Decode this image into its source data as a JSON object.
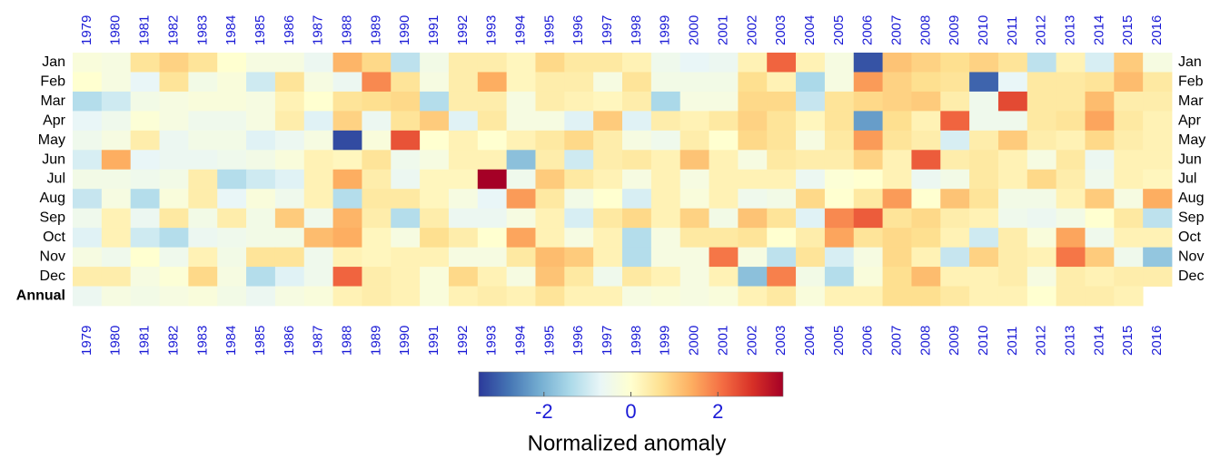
{
  "chart_data": {
    "type": "heatmap",
    "x": [
      1979,
      1980,
      1981,
      1982,
      1983,
      1984,
      1985,
      1986,
      1987,
      1988,
      1989,
      1990,
      1991,
      1992,
      1993,
      1994,
      1995,
      1996,
      1997,
      1998,
      1999,
      2000,
      2001,
      2002,
      2003,
      2004,
      2005,
      2006,
      2007,
      2008,
      2009,
      2010,
      2011,
      2012,
      2013,
      2014,
      2015,
      2016
    ],
    "y": [
      "Jan",
      "Feb",
      "Mar",
      "Apr",
      "May",
      "Jun",
      "Jul",
      "Aug",
      "Sep",
      "Oct",
      "Nov",
      "Dec",
      "Annual"
    ],
    "z": [
      [
        -0.2,
        -0.3,
        0.6,
        0.9,
        0.6,
        0,
        -0.3,
        -0.3,
        -0.6,
        1.3,
        0.8,
        -1.2,
        -0.4,
        0.4,
        0.4,
        0.2,
        0.8,
        0.5,
        0.5,
        0.3,
        -0.5,
        -0.7,
        -0.6,
        0.3,
        2.2,
        0.3,
        -0.3,
        -3.2,
        1.1,
        0.9,
        0.7,
        0.9,
        0.6,
        -1.2,
        0.3,
        -0.9,
        1.0,
        -0.3
      ],
      [
        0,
        -0.3,
        -0.7,
        0.6,
        -0.4,
        -0.2,
        -1.0,
        0.6,
        -0.3,
        -0.6,
        1.8,
        0.6,
        -0.3,
        0.4,
        1.4,
        0.2,
        0.4,
        0.4,
        -0.3,
        0.6,
        -0.4,
        -0.4,
        -0.4,
        0.7,
        0.3,
        -1.4,
        -0.3,
        1.6,
        0.9,
        0.7,
        0.6,
        -3.0,
        -0.7,
        0.5,
        0.5,
        0.6,
        1.2,
        0.5
      ],
      [
        -1.3,
        -1.0,
        -0.4,
        -0.3,
        -0.2,
        -0.2,
        -0.3,
        0.3,
        0,
        0.6,
        0.7,
        0.8,
        -1.3,
        0.4,
        0.4,
        -0.3,
        0.4,
        0.3,
        0.2,
        0.4,
        -1.4,
        -0.3,
        -0.3,
        0.8,
        0.8,
        -1.1,
        0.6,
        0.8,
        0.9,
        1.0,
        0.4,
        -0.5,
        2.5,
        0.5,
        0.5,
        1.2,
        0.4,
        0.4
      ],
      [
        -0.7,
        -0.5,
        -0.1,
        -0.3,
        -0.5,
        -0.5,
        -0.3,
        0.4,
        -0.8,
        0.9,
        -0.6,
        0.6,
        1.0,
        -0.8,
        0.5,
        -0.3,
        -0.3,
        -0.8,
        1.0,
        -0.8,
        0.4,
        0.3,
        0.5,
        0.9,
        0.6,
        0.2,
        0.6,
        -2.3,
        0.7,
        0.3,
        2.2,
        -0.5,
        -0.5,
        0.5,
        0.6,
        1.5,
        0.5,
        0.3
      ],
      [
        -0.5,
        -0.3,
        0.4,
        -0.6,
        -0.4,
        -0.4,
        -0.8,
        -0.6,
        -0.3,
        -3.3,
        -0.2,
        2.4,
        0,
        0.3,
        0,
        0.3,
        0.5,
        0.8,
        0.4,
        -0.3,
        -0.5,
        0.4,
        0,
        0.8,
        0.6,
        -0.3,
        0.5,
        1.6,
        0.6,
        0.4,
        -0.9,
        0.4,
        1.0,
        0.4,
        0.3,
        0.8,
        0.4,
        0.3
      ],
      [
        -0.9,
        1.4,
        -0.7,
        -0.6,
        -0.6,
        -0.5,
        -0.4,
        -0.2,
        0.3,
        0.2,
        0.6,
        -0.5,
        -0.3,
        0.3,
        0.3,
        -1.8,
        0.4,
        -1.0,
        0.4,
        0.5,
        0.3,
        1.1,
        0.3,
        -0.3,
        0.5,
        0.4,
        0.4,
        0.9,
        0.3,
        2.3,
        0.4,
        0.5,
        0.3,
        -0.3,
        0.5,
        -0.6,
        0.3,
        0.3
      ],
      [
        -0.4,
        -0.4,
        -0.5,
        -0.4,
        0.4,
        -1.3,
        -1.0,
        -0.8,
        0.3,
        1.4,
        0.4,
        -0.6,
        0.2,
        0.2,
        3.5,
        -0.5,
        1.0,
        0.5,
        0.3,
        -0.3,
        0.3,
        -0.3,
        0.3,
        0.3,
        0.3,
        -0.6,
        -0.1,
        0,
        0.3,
        -0.6,
        -0.4,
        0.5,
        0.3,
        0.8,
        0.4,
        -0.5,
        0.3,
        0.2
      ],
      [
        -1.1,
        -0.3,
        -1.3,
        -0.2,
        0.4,
        -0.7,
        -0.2,
        -0.5,
        0.3,
        -1.3,
        0.5,
        0.5,
        0.2,
        -0.3,
        -0.7,
        1.6,
        0.5,
        -0.4,
        0,
        -0.9,
        0.3,
        -0.2,
        0.3,
        -0.5,
        -0.4,
        0.8,
        0,
        0.5,
        1.6,
        0,
        1.1,
        0.6,
        -0.4,
        -0.4,
        0.3,
        1.0,
        -0.3,
        1.4
      ],
      [
        -0.5,
        0.3,
        -0.6,
        0.5,
        -0.4,
        0.4,
        -0.4,
        1.0,
        -0.5,
        1.3,
        0.4,
        -1.3,
        0.4,
        -0.6,
        -0.6,
        -0.3,
        0.3,
        -0.9,
        0.5,
        0.8,
        0.3,
        0.9,
        -0.4,
        1.1,
        0.6,
        -0.8,
        1.8,
        2.3,
        0.6,
        0.8,
        0.4,
        0.3,
        -0.5,
        -0.6,
        -0.4,
        0,
        0.5,
        -1.2
      ],
      [
        -0.8,
        0.3,
        -1.0,
        -1.3,
        -0.6,
        -0.5,
        -0.4,
        -0.4,
        1.2,
        1.4,
        0.2,
        -0.3,
        0.7,
        0.4,
        0,
        1.5,
        0.3,
        -0.3,
        0.3,
        -1.3,
        -0.3,
        0.5,
        0.5,
        0.6,
        0,
        0.4,
        1.5,
        0.6,
        0.8,
        0.7,
        0.3,
        -1.0,
        0.4,
        -0.2,
        1.5,
        -0.5,
        0.3,
        0.3
      ],
      [
        -0.3,
        -0.5,
        0,
        -0.5,
        0.3,
        -0.4,
        0.6,
        0.6,
        -0.5,
        0.3,
        0.2,
        0.3,
        0.3,
        -0.3,
        -0.3,
        0.5,
        1.2,
        1.0,
        0.3,
        -1.3,
        -0.3,
        -0.3,
        2.0,
        -0.3,
        -1.2,
        0.6,
        -0.9,
        -0.3,
        0.8,
        0.3,
        -1.1,
        0.9,
        0.4,
        0.3,
        2.0,
        1.0,
        -0.5,
        -1.7
      ],
      [
        0.4,
        0.4,
        -0.3,
        -0.1,
        0.8,
        -0.3,
        -1.3,
        -0.8,
        -0.5,
        2.2,
        0.4,
        0.3,
        -0.2,
        0.8,
        0.3,
        -0.3,
        1.1,
        0.5,
        -0.5,
        0.5,
        0.3,
        -0.3,
        0.3,
        -1.8,
        1.9,
        -0.4,
        -1.3,
        -0.2,
        0.7,
        1.2,
        0.3,
        0.3,
        0.4,
        -0.3,
        0.4,
        0.3,
        0.4,
        0.4
      ],
      [
        -0.6,
        -0.3,
        -0.4,
        -0.3,
        -0.2,
        -0.4,
        -0.6,
        -0.3,
        -0.2,
        0.3,
        0.4,
        0.3,
        -0.2,
        0.3,
        0.4,
        0.3,
        0.6,
        0.3,
        0.3,
        -0.3,
        -0.2,
        -0.3,
        -0.2,
        0.3,
        0.5,
        -0.2,
        0.3,
        0.3,
        0.7,
        0.7,
        0.5,
        0.3,
        0.3,
        0,
        0.4,
        0.4,
        0.3,
        null
      ]
    ],
    "zlim": [
      -3.5,
      3.5
    ],
    "zticks": [
      -2,
      0,
      2
    ],
    "colors": [
      "#2b3a9a",
      "#4575b4",
      "#74add1",
      "#abd9e9",
      "#e9f6f7",
      "#ffffd0",
      "#fee090",
      "#fdae61",
      "#f46d43",
      "#d73027",
      "#a50026"
    ],
    "colorbar_label": "Normalized anomaly"
  }
}
